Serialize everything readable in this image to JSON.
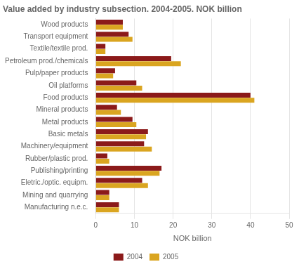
{
  "chart_data": {
    "type": "bar",
    "orientation": "horizontal",
    "title": "Value added by industry subsection. 2004-2005. NOK billion",
    "categories": [
      "Wood products",
      "Transport equipment",
      "Textile/textile prod.",
      "Petroleum prod./chemicals",
      "Pulp/paper products",
      "Oil platforms",
      "Food products",
      "Mineral products",
      "Metal products",
      "Basic metals",
      "Machinery/equipment",
      "Rubber/plastic prod.",
      "Publishing/printing",
      "Eletric./optic. equipm.",
      "Mining and quarrying",
      "Manufacturing n.e.c."
    ],
    "series": [
      {
        "name": "2004",
        "color": "#8B1A1A",
        "values": [
          7.0,
          8.5,
          2.5,
          19.5,
          5.0,
          10.5,
          40.0,
          5.5,
          9.5,
          13.5,
          12.5,
          3.0,
          17.0,
          12.0,
          3.5,
          6.0
        ]
      },
      {
        "name": "2005",
        "color": "#DAA520",
        "values": [
          7.0,
          9.5,
          2.5,
          22.0,
          4.5,
          12.0,
          41.0,
          6.5,
          10.5,
          13.0,
          14.5,
          3.5,
          16.5,
          13.5,
          3.5,
          6.0
        ]
      }
    ],
    "xlabel": "NOK billion",
    "xlim": [
      0,
      50
    ],
    "xticks": [
      0,
      10,
      20,
      30,
      40,
      50
    ],
    "grid": true,
    "legend": "bottom"
  }
}
